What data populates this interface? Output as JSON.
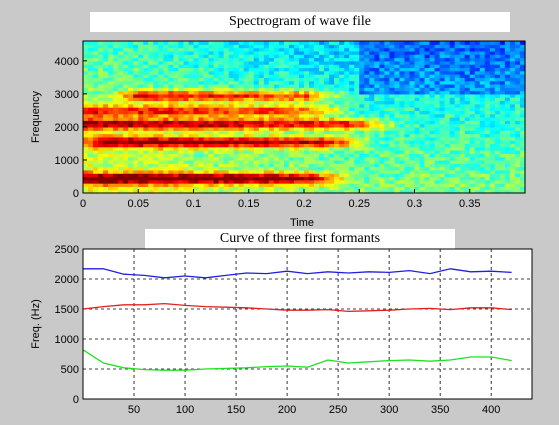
{
  "chart_data": [
    {
      "type": "heatmap",
      "title": "Spectrogram of wave file",
      "xlabel": "Time",
      "ylabel": "Frequency",
      "xlim": [
        0,
        0.4
      ],
      "ylim": [
        0,
        4600
      ],
      "xticks": [
        "0",
        "0.05",
        "0.1",
        "0.15",
        "0.2",
        "0.25",
        "0.3",
        "0.35"
      ],
      "yticks": [
        "0",
        "1000",
        "2000",
        "3000",
        "4000"
      ],
      "colormap": "jet",
      "bands": [
        {
          "freq": 450,
          "t_start": 0.0,
          "t_end": 0.2,
          "intensity": 0.95
        },
        {
          "freq": 1550,
          "t_start": 0.02,
          "t_end": 0.22,
          "intensity": 0.9
        },
        {
          "freq": 2100,
          "t_start": 0.0,
          "t_end": 0.24,
          "intensity": 0.85
        },
        {
          "freq": 2950,
          "t_start": 0.05,
          "t_end": 0.2,
          "intensity": 0.75
        },
        {
          "freq": 2500,
          "t_start": 0.0,
          "t_end": 0.2,
          "intensity": 0.7
        }
      ]
    },
    {
      "type": "line",
      "title": "Curve of  three first formants",
      "xlabel": "",
      "ylabel": "Freq. (Hz)",
      "xlim": [
        0,
        440
      ],
      "ylim": [
        0,
        2500
      ],
      "xticks": [
        "50",
        "100",
        "150",
        "200",
        "250",
        "300",
        "350",
        "400"
      ],
      "yticks": [
        "0",
        "500",
        "1000",
        "1500",
        "2000",
        "2500"
      ],
      "grid": true,
      "x": [
        0,
        20,
        40,
        60,
        80,
        100,
        120,
        140,
        160,
        180,
        200,
        220,
        240,
        260,
        280,
        300,
        320,
        340,
        360,
        380,
        400,
        420
      ],
      "series": [
        {
          "color": "#2020e0",
          "values": [
            2170,
            2170,
            2080,
            2060,
            2020,
            2050,
            2020,
            2060,
            2100,
            2090,
            2130,
            2090,
            2120,
            2100,
            2120,
            2110,
            2140,
            2090,
            2170,
            2120,
            2130,
            2110
          ]
        },
        {
          "color": "#e02020",
          "values": [
            1500,
            1540,
            1570,
            1570,
            1590,
            1560,
            1540,
            1530,
            1520,
            1500,
            1480,
            1480,
            1490,
            1460,
            1470,
            1480,
            1500,
            1510,
            1490,
            1520,
            1520,
            1490
          ]
        },
        {
          "color": "#20e020",
          "values": [
            820,
            600,
            520,
            490,
            480,
            480,
            500,
            510,
            520,
            540,
            550,
            530,
            650,
            600,
            620,
            640,
            650,
            630,
            650,
            700,
            700,
            640
          ]
        }
      ]
    }
  ]
}
